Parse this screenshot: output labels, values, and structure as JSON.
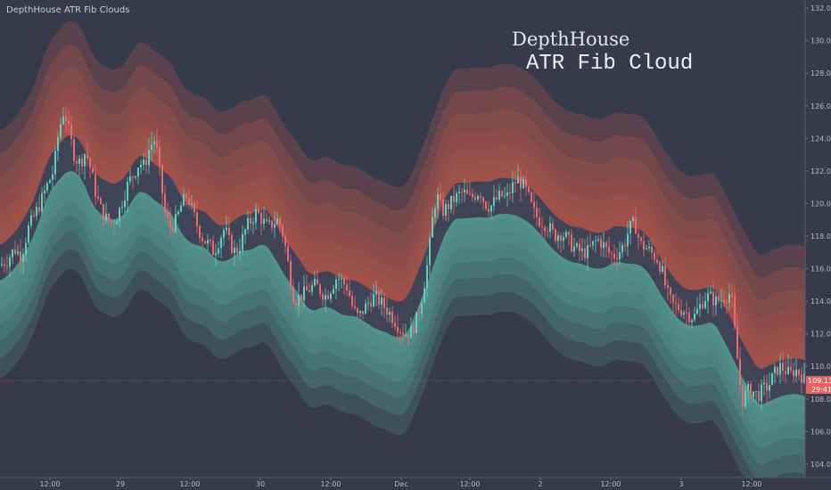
{
  "indicator_label": "DepthHouse ATR Fib Clouds",
  "watermark": {
    "line1": "DepthHouse",
    "line2": "ATR Fib Cloud"
  },
  "price_badges": {
    "last_price": "109.13",
    "countdown": "29:41"
  },
  "colors": {
    "background": "#363a4b",
    "up": "#5fd0bd",
    "down": "#ec6a6d",
    "upper_cloud": "#e4644d",
    "lower_cloud": "#5fb5a6",
    "axis_text": "#b6b9c4",
    "badge": "#e6615f"
  },
  "chart_data": {
    "type": "candlestick",
    "ylim": [
      103.5,
      132.5
    ],
    "y_ticks": [
      "104.00",
      "106.00",
      "108.00",
      "110.00",
      "112.00",
      "114.00",
      "116.00",
      "118.00",
      "120.00",
      "122.00",
      "124.00",
      "126.00",
      "128.00",
      "130.00",
      "132.00"
    ],
    "x_ticks": [
      "12:00",
      "29",
      "12:00",
      "30",
      "12:00",
      "Dec",
      "12:00",
      "2",
      "12:00",
      "3",
      "12:00"
    ],
    "close_path": [
      [
        0,
        116.2
      ],
      [
        8,
        116.5
      ],
      [
        16,
        117.2
      ],
      [
        24,
        116.8
      ],
      [
        32,
        118.5
      ],
      [
        38,
        119.2
      ],
      [
        45,
        120.0
      ],
      [
        52,
        121.0
      ],
      [
        60,
        122.0
      ],
      [
        66,
        124.5
      ],
      [
        72,
        125.8
      ],
      [
        78,
        124.2
      ],
      [
        84,
        122.8
      ],
      [
        90,
        122.5
      ],
      [
        96,
        123.2
      ],
      [
        102,
        122.0
      ],
      [
        108,
        120.5
      ],
      [
        114,
        119.5
      ],
      [
        120,
        119.0
      ],
      [
        126,
        118.8
      ],
      [
        132,
        119.3
      ],
      [
        138,
        120.3
      ],
      [
        144,
        121.3
      ],
      [
        150,
        121.8
      ],
      [
        156,
        122.5
      ],
      [
        162,
        122.3
      ],
      [
        168,
        123.5
      ],
      [
        174,
        124.0
      ],
      [
        180,
        121.5
      ],
      [
        186,
        119.0
      ],
      [
        192,
        118.5
      ],
      [
        198,
        119.0
      ],
      [
        204,
        120.0
      ],
      [
        210,
        120.5
      ],
      [
        216,
        119.5
      ],
      [
        222,
        118.5
      ],
      [
        228,
        117.8
      ],
      [
        234,
        117.5
      ],
      [
        240,
        117.0
      ],
      [
        246,
        117.8
      ],
      [
        252,
        118.5
      ],
      [
        258,
        117.5
      ],
      [
        264,
        117.0
      ],
      [
        270,
        117.5
      ],
      [
        276,
        118.5
      ],
      [
        282,
        119.0
      ],
      [
        288,
        119.5
      ],
      [
        294,
        119.0
      ],
      [
        300,
        118.5
      ],
      [
        306,
        118.8
      ],
      [
        312,
        119.0
      ],
      [
        318,
        118.0
      ],
      [
        324,
        116.0
      ],
      [
        330,
        114.0
      ],
      [
        336,
        114.3
      ],
      [
        342,
        114.5
      ],
      [
        348,
        114.8
      ],
      [
        354,
        115.0
      ],
      [
        360,
        114.6
      ],
      [
        366,
        114.3
      ],
      [
        372,
        114.9
      ],
      [
        378,
        115.5
      ],
      [
        384,
        115.2
      ],
      [
        390,
        114.8
      ],
      [
        396,
        113.5
      ],
      [
        402,
        113.0
      ],
      [
        408,
        113.5
      ],
      [
        414,
        114.0
      ],
      [
        420,
        114.3
      ],
      [
        426,
        114.0
      ],
      [
        432,
        113.6
      ],
      [
        438,
        113.2
      ],
      [
        444,
        112.7
      ],
      [
        450,
        112.2
      ],
      [
        456,
        112.0
      ],
      [
        462,
        112.2
      ],
      [
        468,
        113.0
      ],
      [
        474,
        114.5
      ],
      [
        480,
        116.5
      ],
      [
        486,
        119.5
      ],
      [
        490,
        120.5
      ],
      [
        496,
        119.5
      ],
      [
        502,
        119.8
      ],
      [
        508,
        120.2
      ],
      [
        514,
        120.5
      ],
      [
        520,
        120.7
      ],
      [
        526,
        120.3
      ],
      [
        532,
        120.5
      ],
      [
        538,
        120.8
      ],
      [
        544,
        120.0
      ],
      [
        550,
        119.8
      ],
      [
        556,
        120.2
      ],
      [
        562,
        120.5
      ],
      [
        568,
        120.3
      ],
      [
        574,
        121.0
      ],
      [
        580,
        121.5
      ],
      [
        586,
        121.2
      ],
      [
        592,
        120.5
      ],
      [
        598,
        119.5
      ],
      [
        604,
        119.0
      ],
      [
        610,
        118.8
      ],
      [
        616,
        118.5
      ],
      [
        622,
        118.0
      ],
      [
        628,
        118.2
      ],
      [
        634,
        118.0
      ],
      [
        640,
        117.5
      ],
      [
        646,
        117.2
      ],
      [
        652,
        117.0
      ],
      [
        658,
        117.0
      ],
      [
        664,
        117.4
      ],
      [
        670,
        117.8
      ],
      [
        676,
        117.5
      ],
      [
        682,
        117.0
      ],
      [
        688,
        116.8
      ],
      [
        694,
        117.0
      ],
      [
        700,
        117.5
      ],
      [
        706,
        118.5
      ],
      [
        712,
        118.8
      ],
      [
        718,
        117.5
      ],
      [
        724,
        117.3
      ],
      [
        730,
        117.0
      ],
      [
        736,
        116.7
      ],
      [
        742,
        116.0
      ],
      [
        748,
        114.5
      ],
      [
        754,
        113.8
      ],
      [
        760,
        113.6
      ],
      [
        766,
        113.5
      ],
      [
        772,
        113.2
      ],
      [
        778,
        113.0
      ],
      [
        784,
        113.6
      ],
      [
        790,
        114.2
      ],
      [
        796,
        114.3
      ],
      [
        802,
        114.0
      ],
      [
        808,
        114.1
      ],
      [
        814,
        114.3
      ],
      [
        820,
        114.5
      ],
      [
        826,
        111.0
      ],
      [
        832,
        107.8
      ],
      [
        838,
        108.5
      ],
      [
        844,
        108.5
      ],
      [
        850,
        108.2
      ],
      [
        856,
        108.6
      ],
      [
        862,
        108.8
      ],
      [
        868,
        109.5
      ],
      [
        874,
        110.0
      ],
      [
        880,
        109.8
      ],
      [
        886,
        109.5
      ],
      [
        892,
        109.8
      ],
      [
        898,
        109.5
      ],
      [
        903,
        109.13
      ]
    ]
  }
}
